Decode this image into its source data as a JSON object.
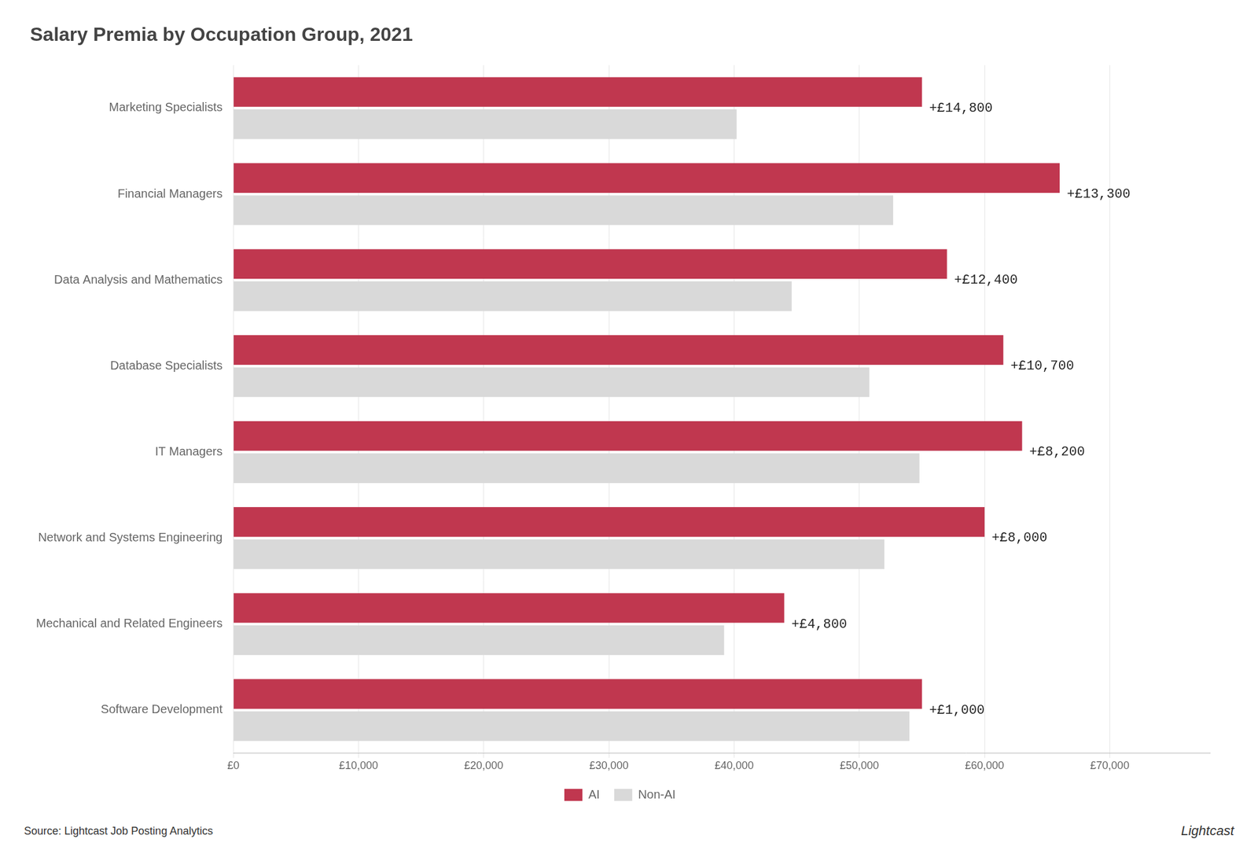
{
  "chart_data": {
    "type": "bar",
    "orientation": "horizontal",
    "title": "Salary Premia by Occupation Group, 2021",
    "categories": [
      "Software Development",
      "Mechanical and Related Engineers",
      "Network and Systems Engineering",
      "IT Managers",
      "Database Specialists",
      "Data Analysis and Mathematics",
      "Financial Managers",
      "Marketing Specialists"
    ],
    "series": [
      {
        "name": "AI",
        "color": "#c0374f",
        "values": [
          55000,
          44000,
          60000,
          63000,
          61500,
          57000,
          66000,
          55000
        ]
      },
      {
        "name": "Non-AI",
        "color": "#d9d9d9",
        "values": [
          54000,
          39200,
          52000,
          54800,
          50800,
          44600,
          52700,
          40200
        ]
      }
    ],
    "xlim": [
      0,
      78000
    ],
    "xticks": [
      {
        "value": 0,
        "label": "£0"
      },
      {
        "value": 10000,
        "label": "£10,000"
      },
      {
        "value": 20000,
        "label": "£20,000"
      },
      {
        "value": 30000,
        "label": "£30,000"
      },
      {
        "value": 40000,
        "label": "£40,000"
      },
      {
        "value": 50000,
        "label": "£50,000"
      },
      {
        "value": 60000,
        "label": "£60,000"
      },
      {
        "value": 70000,
        "label": "£70,000"
      }
    ],
    "grid": true,
    "legend": "bottom",
    "annotations": [
      {
        "category": "Software Development",
        "text": "+£1,000"
      },
      {
        "category": "Mechanical and Related Engineers",
        "text": "+£4,800"
      },
      {
        "category": "Network and Systems Engineering",
        "text": "+£8,000"
      },
      {
        "category": "IT Managers",
        "text": "+£8,200"
      },
      {
        "category": "Database Specialists",
        "text": "+£10,700"
      },
      {
        "category": "Data Analysis and Mathematics",
        "text": "+£12,400"
      },
      {
        "category": "Financial Managers",
        "text": "+£13,300"
      },
      {
        "category": "Marketing Specialists",
        "text": "+£14,800"
      },
      {
        "text": "Source: Lightcast Job Posting Analytics"
      },
      {
        "text": "Lightcast"
      }
    ]
  }
}
